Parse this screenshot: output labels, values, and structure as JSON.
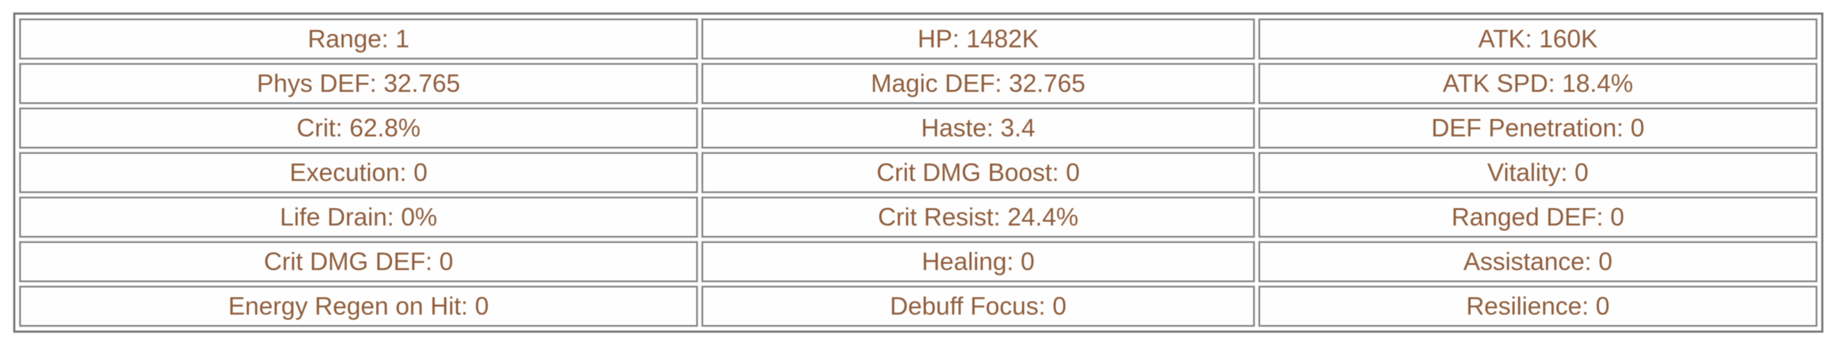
{
  "colors": {
    "text_brown": "#915f3e",
    "cell_border_gray": "#7d7d7d",
    "outer_border_gray": "#767676",
    "background": "#ffffff"
  },
  "chart_data": {
    "type": "table",
    "title": "",
    "columns": 3,
    "rows": 7,
    "cells": [
      [
        "Range: 1",
        "HP: 1482K",
        "ATK: 160K"
      ],
      [
        "Phys DEF: 32.765",
        "Magic DEF: 32.765",
        "ATK SPD: 18.4%"
      ],
      [
        "Crit: 62.8%",
        "Haste: 3.4",
        "DEF Penetration: 0"
      ],
      [
        "Execution: 0",
        "Crit DMG Boost: 0",
        "Vitality: 0"
      ],
      [
        "Life Drain: 0%",
        "Crit Resist: 24.4%",
        "Ranged DEF: 0"
      ],
      [
        "Crit DMG DEF: 0",
        "Healing: 0",
        "Assistance: 0"
      ],
      [
        "Energy Regen on Hit: 0",
        "Debuff Focus: 0",
        "Resilience: 0"
      ]
    ],
    "stats": {
      "range": "1",
      "hp": "1482K",
      "atk": "160K",
      "phys_def": "32.765",
      "magic_def": "32.765",
      "atk_spd": "18.4%",
      "crit": "62.8%",
      "haste": "3.4",
      "def_penetration": "0",
      "execution": "0",
      "crit_dmg_boost": "0",
      "vitality": "0",
      "life_drain": "0%",
      "crit_resist": "24.4%",
      "ranged_def": "0",
      "crit_dmg_def": "0",
      "healing": "0",
      "assistance": "0",
      "energy_regen_on_hit": "0",
      "debuff_focus": "0",
      "resilience": "0"
    }
  }
}
